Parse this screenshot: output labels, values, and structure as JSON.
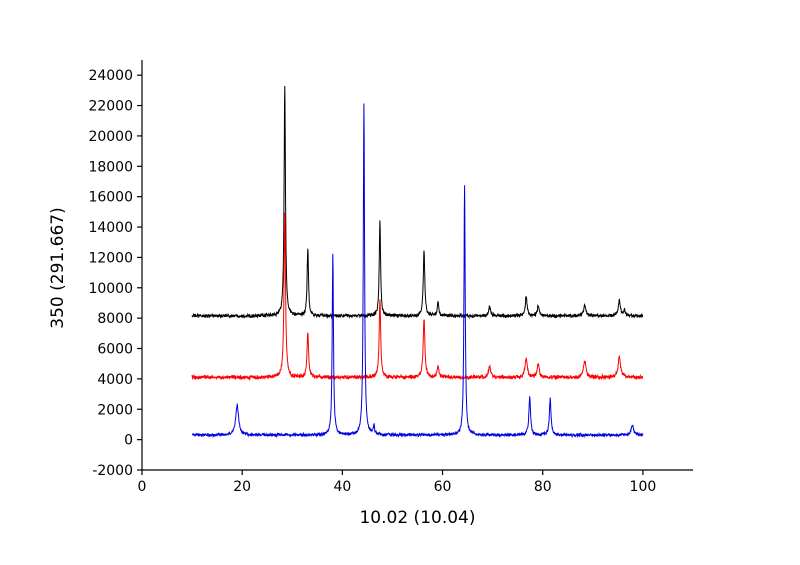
{
  "figure": {
    "background": "#ffffff",
    "axis_color": "#000000"
  },
  "chart_data": {
    "type": "line",
    "title": "",
    "xlabel": "10.02 (10.04)",
    "ylabel": "350 (291.667)",
    "xlim": [
      0,
      110
    ],
    "ylim": [
      -2000,
      25000
    ],
    "xticks": [
      0,
      20,
      40,
      60,
      80,
      100
    ],
    "yticks": [
      -2000,
      0,
      2000,
      4000,
      6000,
      8000,
      10000,
      12000,
      14000,
      16000,
      18000,
      20000,
      22000,
      24000
    ],
    "x_range": [
      10,
      100
    ],
    "grid": false,
    "legend": "none",
    "axis_color": "#000000",
    "series": [
      {
        "name": "black",
        "color": "#000000",
        "baseline": 8150,
        "noise": 60,
        "peaks": [
          {
            "center": 28.5,
            "amplitude": 15250,
            "hwhm": 0.16
          },
          {
            "center": 33.1,
            "amplitude": 4450,
            "hwhm": 0.16
          },
          {
            "center": 47.5,
            "amplitude": 6250,
            "hwhm": 0.16
          },
          {
            "center": 56.3,
            "amplitude": 4300,
            "hwhm": 0.18
          },
          {
            "center": 59.1,
            "amplitude": 900,
            "hwhm": 0.18
          },
          {
            "center": 69.4,
            "amplitude": 650,
            "hwhm": 0.22
          },
          {
            "center": 76.7,
            "amplitude": 1250,
            "hwhm": 0.22
          },
          {
            "center": 79.1,
            "amplitude": 650,
            "hwhm": 0.22
          },
          {
            "center": 88.4,
            "amplitude": 750,
            "hwhm": 0.25
          },
          {
            "center": 95.3,
            "amplitude": 1000,
            "hwhm": 0.25
          },
          {
            "center": 96.3,
            "amplitude": 400,
            "hwhm": 0.2
          }
        ]
      },
      {
        "name": "red",
        "color": "#ff0000",
        "baseline": 4100,
        "noise": 65,
        "peaks": [
          {
            "center": 28.5,
            "amplitude": 10900,
            "hwhm": 0.18
          },
          {
            "center": 33.1,
            "amplitude": 3000,
            "hwhm": 0.18
          },
          {
            "center": 47.5,
            "amplitude": 5100,
            "hwhm": 0.18
          },
          {
            "center": 56.3,
            "amplitude": 3900,
            "hwhm": 0.2
          },
          {
            "center": 59.1,
            "amplitude": 800,
            "hwhm": 0.2
          },
          {
            "center": 69.4,
            "amplitude": 700,
            "hwhm": 0.25
          },
          {
            "center": 76.7,
            "amplitude": 1300,
            "hwhm": 0.25
          },
          {
            "center": 79.1,
            "amplitude": 900,
            "hwhm": 0.25
          },
          {
            "center": 88.4,
            "amplitude": 1100,
            "hwhm": 0.3
          },
          {
            "center": 95.3,
            "amplitude": 1350,
            "hwhm": 0.3
          }
        ]
      },
      {
        "name": "blue",
        "color": "#0000e0",
        "baseline": 300,
        "noise": 50,
        "peaks": [
          {
            "center": 19.0,
            "amplitude": 1950,
            "hwhm": 0.35
          },
          {
            "center": 38.1,
            "amplitude": 11900,
            "hwhm": 0.15
          },
          {
            "center": 44.3,
            "amplitude": 21800,
            "hwhm": 0.15
          },
          {
            "center": 46.3,
            "amplitude": 600,
            "hwhm": 0.15
          },
          {
            "center": 64.4,
            "amplitude": 16400,
            "hwhm": 0.15
          },
          {
            "center": 77.4,
            "amplitude": 2500,
            "hwhm": 0.2
          },
          {
            "center": 81.5,
            "amplitude": 2350,
            "hwhm": 0.2
          },
          {
            "center": 97.9,
            "amplitude": 650,
            "hwhm": 0.3
          }
        ]
      }
    ]
  }
}
